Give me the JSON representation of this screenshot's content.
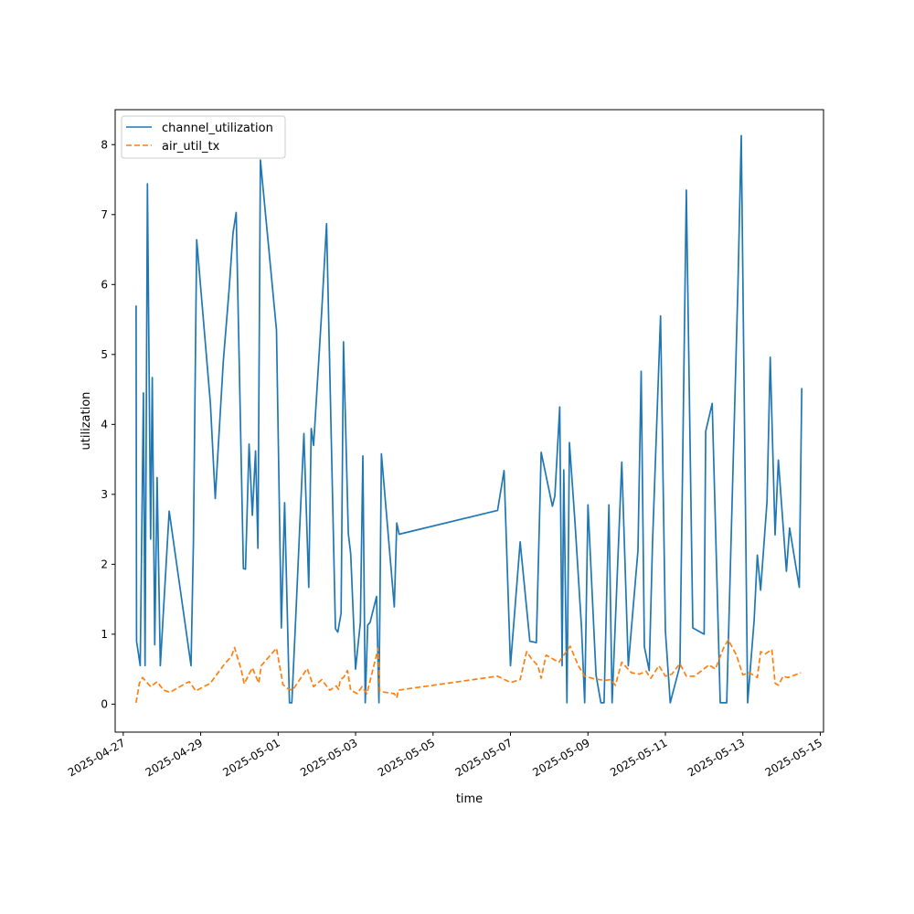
{
  "chart_data": {
    "type": "line",
    "title": "",
    "xlabel": "time",
    "ylabel": "utilization",
    "xlim": [
      "2025-04-26T19:00",
      "2025-05-15T02:00"
    ],
    "ylim": [
      -0.4,
      8.5
    ],
    "x_ticks": [
      "2025-04-27",
      "2025-04-29",
      "2025-05-01",
      "2025-05-03",
      "2025-05-05",
      "2025-05-07",
      "2025-05-09",
      "2025-05-11",
      "2025-05-13",
      "2025-05-15"
    ],
    "y_ticks": [
      0,
      1,
      2,
      3,
      4,
      5,
      6,
      7,
      8
    ],
    "grid": false,
    "legend_position": "upper left",
    "series": [
      {
        "name": "channel_utilization",
        "color": "#1f77b4",
        "style": "solid",
        "points": [
          [
            "2025-04-27T08:00",
            5.7
          ],
          [
            "2025-04-27T08:15",
            0.9
          ],
          [
            "2025-04-27T10:30",
            0.55
          ],
          [
            "2025-04-27T12:30",
            4.45
          ],
          [
            "2025-04-27T13:30",
            0.55
          ],
          [
            "2025-04-27T15:00",
            7.44
          ],
          [
            "2025-04-27T17:00",
            2.36
          ],
          [
            "2025-04-27T18:00",
            4.67
          ],
          [
            "2025-04-27T19:30",
            0.85
          ],
          [
            "2025-04-27T21:00",
            3.24
          ],
          [
            "2025-04-27T23:00",
            0.55
          ],
          [
            "2025-04-28T04:30",
            2.76
          ],
          [
            "2025-04-28T18:00",
            0.55
          ],
          [
            "2025-04-28T19:30",
            2.3
          ],
          [
            "2025-04-28T21:30",
            6.64
          ],
          [
            "2025-04-29T06:00",
            4.3
          ],
          [
            "2025-04-29T09:00",
            2.94
          ],
          [
            "2025-04-29T14:00",
            4.9
          ],
          [
            "2025-04-29T17:30",
            5.9
          ],
          [
            "2025-04-29T20:00",
            6.73
          ],
          [
            "2025-04-29T22:00",
            7.03
          ],
          [
            "2025-04-30T02:30",
            1.94
          ],
          [
            "2025-04-30T03:45",
            1.93
          ],
          [
            "2025-04-30T06:00",
            3.72
          ],
          [
            "2025-04-30T08:00",
            2.7
          ],
          [
            "2025-04-30T10:00",
            3.62
          ],
          [
            "2025-04-30T11:30",
            2.23
          ],
          [
            "2025-04-30T13:00",
            7.78
          ],
          [
            "2025-04-30T23:00",
            5.35
          ],
          [
            "2025-05-01T02:00",
            1.09
          ],
          [
            "2025-05-01T04:00",
            2.88
          ],
          [
            "2025-05-01T07:00",
            0.02
          ],
          [
            "2025-05-01T08:30",
            0.02
          ],
          [
            "2025-05-01T11:00",
            1.28
          ],
          [
            "2025-05-01T16:00",
            3.87
          ],
          [
            "2025-05-01T19:00",
            1.67
          ],
          [
            "2025-05-01T20:30",
            3.94
          ],
          [
            "2025-05-01T22:00",
            3.7
          ],
          [
            "2025-05-02T03:00",
            5.62
          ],
          [
            "2025-05-02T06:00",
            6.87
          ],
          [
            "2025-05-02T11:30",
            1.08
          ],
          [
            "2025-05-02T13:00",
            1.03
          ],
          [
            "2025-05-02T15:00",
            1.3
          ],
          [
            "2025-05-02T16:30",
            5.18
          ],
          [
            "2025-05-02T19:30",
            2.44
          ],
          [
            "2025-05-02T21:00",
            2.15
          ],
          [
            "2025-05-03T00:00",
            0.5
          ],
          [
            "2025-05-03T03:00",
            1.17
          ],
          [
            "2025-05-03T04:30",
            3.55
          ],
          [
            "2025-05-03T06:00",
            0.02
          ],
          [
            "2025-05-03T07:30",
            1.13
          ],
          [
            "2025-05-03T09:00",
            1.17
          ],
          [
            "2025-05-03T13:00",
            1.54
          ],
          [
            "2025-05-03T14:30",
            0.02
          ],
          [
            "2025-05-03T16:00",
            3.58
          ],
          [
            "2025-05-04T00:00",
            1.39
          ],
          [
            "2025-05-04T01:30",
            2.59
          ],
          [
            "2025-05-04T03:00",
            2.43
          ],
          [
            "2025-05-06T16:00",
            2.77
          ],
          [
            "2025-05-06T20:00",
            3.34
          ],
          [
            "2025-05-07T00:00",
            0.55
          ],
          [
            "2025-05-07T06:00",
            2.32
          ],
          [
            "2025-05-07T12:00",
            0.9
          ],
          [
            "2025-05-07T16:00",
            0.88
          ],
          [
            "2025-05-07T19:00",
            3.6
          ],
          [
            "2025-05-08T02:00",
            2.83
          ],
          [
            "2025-05-08T03:30",
            2.98
          ],
          [
            "2025-05-08T06:30",
            4.25
          ],
          [
            "2025-05-08T08:00",
            0.55
          ],
          [
            "2025-05-08T09:00",
            3.35
          ],
          [
            "2025-05-08T11:00",
            0.02
          ],
          [
            "2025-05-08T12:30",
            3.74
          ],
          [
            "2025-05-08T16:00",
            2.6
          ],
          [
            "2025-05-08T20:00",
            1.1
          ],
          [
            "2025-05-08T22:00",
            0.02
          ],
          [
            "2025-05-09T00:00",
            2.85
          ],
          [
            "2025-05-09T05:00",
            0.42
          ],
          [
            "2025-05-09T08:00",
            0.02
          ],
          [
            "2025-05-09T10:00",
            0.02
          ],
          [
            "2025-05-09T13:00",
            2.85
          ],
          [
            "2025-05-09T15:00",
            0.02
          ],
          [
            "2025-05-09T21:00",
            3.46
          ],
          [
            "2025-05-10T01:00",
            0.55
          ],
          [
            "2025-05-10T07:00",
            2.2
          ],
          [
            "2025-05-10T09:00",
            4.76
          ],
          [
            "2025-05-10T11:00",
            0.82
          ],
          [
            "2025-05-10T14:00",
            0.48
          ],
          [
            "2025-05-10T16:00",
            2.3
          ],
          [
            "2025-05-10T21:00",
            5.55
          ],
          [
            "2025-05-11T00:00",
            1.05
          ],
          [
            "2025-05-11T03:00",
            0.02
          ],
          [
            "2025-05-11T09:00",
            0.55
          ],
          [
            "2025-05-11T13:00",
            7.35
          ],
          [
            "2025-05-11T17:00",
            1.09
          ],
          [
            "2025-05-12T00:00",
            1.0
          ],
          [
            "2025-05-12T01:00",
            3.9
          ],
          [
            "2025-05-12T05:00",
            4.3
          ],
          [
            "2025-05-12T10:00",
            0.02
          ],
          [
            "2025-05-12T14:00",
            0.02
          ],
          [
            "2025-05-12T21:00",
            6.0
          ],
          [
            "2025-05-12T23:00",
            8.13
          ],
          [
            "2025-05-13T03:00",
            0.02
          ],
          [
            "2025-05-13T07:00",
            1.2
          ],
          [
            "2025-05-13T09:00",
            2.13
          ],
          [
            "2025-05-13T11:00",
            1.63
          ],
          [
            "2025-05-13T15:00",
            2.9
          ],
          [
            "2025-05-13T17:00",
            4.96
          ],
          [
            "2025-05-13T20:00",
            2.42
          ],
          [
            "2025-05-13T22:00",
            3.49
          ],
          [
            "2025-05-14T03:00",
            1.9
          ],
          [
            "2025-05-14T05:00",
            2.52
          ],
          [
            "2025-05-14T11:00",
            1.67
          ],
          [
            "2025-05-14T12:30",
            4.52
          ]
        ]
      },
      {
        "name": "air_util_tx",
        "color": "#ff7f0e",
        "style": "dashed",
        "points": [
          [
            "2025-04-27T08:00",
            0.02
          ],
          [
            "2025-04-27T10:00",
            0.3
          ],
          [
            "2025-04-27T12:00",
            0.38
          ],
          [
            "2025-04-27T17:00",
            0.25
          ],
          [
            "2025-04-27T21:00",
            0.32
          ],
          [
            "2025-04-28T01:00",
            0.2
          ],
          [
            "2025-04-28T05:00",
            0.17
          ],
          [
            "2025-04-28T15:00",
            0.3
          ],
          [
            "2025-04-28T17:00",
            0.32
          ],
          [
            "2025-04-28T21:00",
            0.19
          ],
          [
            "2025-04-29T06:00",
            0.3
          ],
          [
            "2025-04-29T15:00",
            0.58
          ],
          [
            "2025-04-29T19:00",
            0.68
          ],
          [
            "2025-04-29T21:00",
            0.81
          ],
          [
            "2025-04-30T01:00",
            0.5
          ],
          [
            "2025-04-30T03:00",
            0.29
          ],
          [
            "2025-04-30T08:00",
            0.52
          ],
          [
            "2025-04-30T12:00",
            0.3
          ],
          [
            "2025-04-30T13:30",
            0.55
          ],
          [
            "2025-04-30T23:00",
            0.8
          ],
          [
            "2025-05-01T03:00",
            0.28
          ],
          [
            "2025-05-01T06:00",
            0.22
          ],
          [
            "2025-05-01T09:00",
            0.2
          ],
          [
            "2025-05-01T18:00",
            0.51
          ],
          [
            "2025-05-01T22:00",
            0.25
          ],
          [
            "2025-05-02T03:00",
            0.35
          ],
          [
            "2025-05-02T08:00",
            0.2
          ],
          [
            "2025-05-02T12:00",
            0.26
          ],
          [
            "2025-05-02T13:30",
            0.21
          ],
          [
            "2025-05-02T14:30",
            0.35
          ],
          [
            "2025-05-02T16:30",
            0.38
          ],
          [
            "2025-05-02T19:00",
            0.48
          ],
          [
            "2025-05-02T21:00",
            0.2
          ],
          [
            "2025-05-03T01:00",
            0.15
          ],
          [
            "2025-05-03T04:00",
            0.25
          ],
          [
            "2025-05-03T07:00",
            0.15
          ],
          [
            "2025-05-03T14:00",
            0.8
          ],
          [
            "2025-05-03T15:00",
            0.18
          ],
          [
            "2025-05-04T00:00",
            0.15
          ],
          [
            "2025-05-04T01:30",
            0.09
          ],
          [
            "2025-05-04T02:30",
            0.2
          ],
          [
            "2025-05-06T16:00",
            0.4
          ],
          [
            "2025-05-07T00:00",
            0.31
          ],
          [
            "2025-05-07T06:00",
            0.35
          ],
          [
            "2025-05-07T10:00",
            0.75
          ],
          [
            "2025-05-07T13:00",
            0.65
          ],
          [
            "2025-05-07T17:00",
            0.55
          ],
          [
            "2025-05-07T19:00",
            0.37
          ],
          [
            "2025-05-07T22:00",
            0.7
          ],
          [
            "2025-05-08T06:00",
            0.6
          ],
          [
            "2025-05-08T09:00",
            0.7
          ],
          [
            "2025-05-08T13:00",
            0.83
          ],
          [
            "2025-05-08T18:00",
            0.55
          ],
          [
            "2025-05-08T22:00",
            0.4
          ],
          [
            "2025-05-09T04:00",
            0.36
          ],
          [
            "2025-05-09T10:00",
            0.34
          ],
          [
            "2025-05-09T14:00",
            0.35
          ],
          [
            "2025-05-09T17:00",
            0.27
          ],
          [
            "2025-05-09T21:00",
            0.6
          ],
          [
            "2025-05-10T03:00",
            0.45
          ],
          [
            "2025-05-10T08:00",
            0.43
          ],
          [
            "2025-05-10T12:00",
            0.47
          ],
          [
            "2025-05-10T15:00",
            0.37
          ],
          [
            "2025-05-10T20:00",
            0.55
          ],
          [
            "2025-05-11T00:00",
            0.4
          ],
          [
            "2025-05-11T04:00",
            0.43
          ],
          [
            "2025-05-11T09:00",
            0.58
          ],
          [
            "2025-05-11T13:00",
            0.4
          ],
          [
            "2025-05-11T18:00",
            0.4
          ],
          [
            "2025-05-12T03:00",
            0.56
          ],
          [
            "2025-05-12T07:00",
            0.5
          ],
          [
            "2025-05-12T12:00",
            0.8
          ],
          [
            "2025-05-12T15:00",
            0.92
          ],
          [
            "2025-05-12T20:00",
            0.7
          ],
          [
            "2025-05-13T00:00",
            0.42
          ],
          [
            "2025-05-13T04:00",
            0.45
          ],
          [
            "2025-05-13T09:00",
            0.38
          ],
          [
            "2025-05-13T11:00",
            0.75
          ],
          [
            "2025-05-13T14:00",
            0.72
          ],
          [
            "2025-05-13T18:00",
            0.78
          ],
          [
            "2025-05-13T20:00",
            0.3
          ],
          [
            "2025-05-13T22:00",
            0.27
          ],
          [
            "2025-05-14T01:00",
            0.4
          ],
          [
            "2025-05-14T04:00",
            0.38
          ],
          [
            "2025-05-14T12:00",
            0.45
          ]
        ]
      }
    ]
  }
}
